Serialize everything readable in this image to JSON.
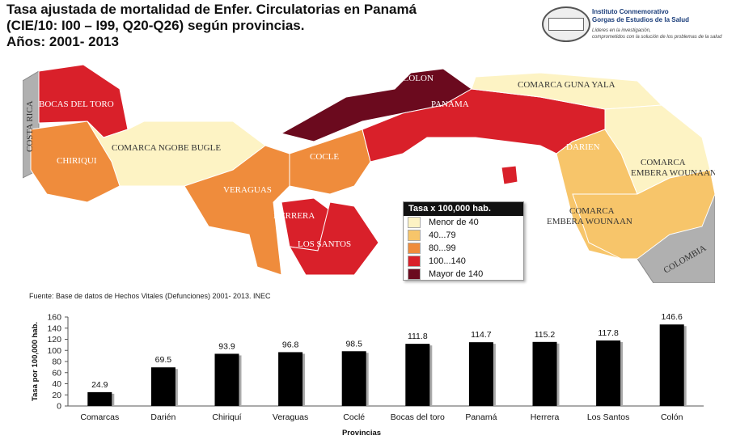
{
  "title_lines": [
    "Tasa  ajustada de mortalidad de Enfer. Circulatorias en Panamá",
    "(CIE/10: I00  – I99, Q20-Q26) según provincias.",
    "Años: 2001- 2013"
  ],
  "logo": {
    "name_line1": "Instituto Conmemorativo",
    "name_line2": "Gorgas de Estudios de la Salud",
    "tagline1": "Líderes en la investigación,",
    "tagline2": "comprometidos con la solución de los problemas de la salud"
  },
  "map": {
    "regions": [
      "BOCAS DEL TORO",
      "COMARCA NGOBE BUGLE",
      "CHIRIQUI",
      "VERAGUAS",
      "COCLE",
      "HERRERA",
      "LOS SANTOS",
      "COLON",
      "PANAMA",
      "COMARCA GUNA YALA",
      "DARIEN",
      "COMARCA EMBERA WOUNAAN",
      "COMARCA EMBERA WOUNAAN",
      "COSTA RICA",
      "COLOMBIA"
    ],
    "colors": {
      "menor40": "#fdf3c4",
      "r40_79": "#f7c56a",
      "r80_99": "#ef8c3c",
      "r100_140": "#d9202a",
      "mayor140": "#6b0a1e",
      "neighbor": "#b0b0b0"
    }
  },
  "legend": {
    "title": "Tasa x 100,000 hab.",
    "items": [
      {
        "label": "Menor de 40",
        "color": "#fdf3c4"
      },
      {
        "label": "40...79",
        "color": "#f7c56a"
      },
      {
        "label": "80...99",
        "color": "#ef8c3c"
      },
      {
        "label": "100...140",
        "color": "#d9202a"
      },
      {
        "label": "Mayor de 140",
        "color": "#6b0a1e"
      }
    ]
  },
  "source": "Fuente: Base de datos de Hechos Vitales (Defunciones) 2001- 2013. INEC",
  "chart_data": {
    "type": "bar",
    "categories": [
      "Comarcas",
      "Darién",
      "Chiriquí",
      "Veraguas",
      "Coclé",
      "Bocas del toro",
      "Panamá",
      "Herrera",
      "Los Santos",
      "Colón"
    ],
    "values": [
      24.9,
      69.5,
      93.9,
      96.8,
      98.5,
      111.8,
      114.7,
      115.2,
      117.8,
      146.6
    ],
    "value_labels": [
      "24.9",
      "69.5",
      "93.9",
      "96.8",
      "98.5",
      "111.8",
      "114.7",
      "115.2",
      "117.8",
      "146.6"
    ],
    "xlabel": "Provincias",
    "ylabel": "Tasa por 100,000 hab.",
    "ylim": [
      0,
      160
    ],
    "yticks": [
      0,
      20,
      40,
      60,
      80,
      100,
      120,
      140,
      160
    ],
    "bar_color": "#000000",
    "grid": false
  }
}
